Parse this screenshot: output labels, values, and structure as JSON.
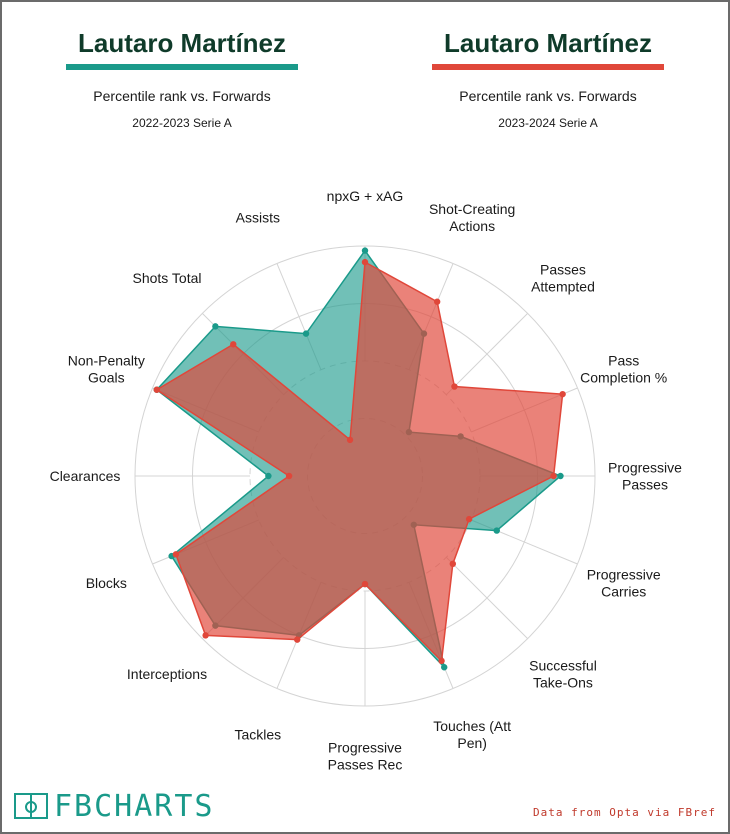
{
  "header": {
    "left": {
      "name": "Lautaro Martínez",
      "subtitle": "Percentile rank vs. Forwards",
      "season": "2022-2023 Serie A",
      "color": "#1a9a8a"
    },
    "right": {
      "name": "Lautaro Martínez",
      "subtitle": "Percentile rank vs. Forwards",
      "season": "2023-2024 Serie A",
      "color": "#e0473a"
    }
  },
  "chart_data": {
    "type": "radar",
    "rmax": 100,
    "rings": [
      25,
      50,
      75,
      100
    ],
    "axes": [
      [
        "npxG + xAG"
      ],
      [
        "Shot-Creating",
        "Actions"
      ],
      [
        "Passes",
        "Attempted"
      ],
      [
        "Pass",
        "Completion %"
      ],
      [
        "Progressive",
        "Passes"
      ],
      [
        "Progressive",
        "Carries"
      ],
      [
        "Successful",
        "Take-Ons"
      ],
      [
        "Touches (Att",
        "Pen)"
      ],
      [
        "Progressive",
        "Passes Rec"
      ],
      [
        "Tackles"
      ],
      [
        "Interceptions"
      ],
      [
        "Blocks"
      ],
      [
        "Clearances"
      ],
      [
        "Non-Penalty",
        "Goals"
      ],
      [
        "Shots Total"
      ],
      [
        "Assists"
      ]
    ],
    "series": [
      {
        "name": "2022-2023 Serie A",
        "color": "#1a9a8a",
        "values": [
          98,
          67,
          27,
          45,
          85,
          62,
          30,
          90,
          47,
          75,
          92,
          91,
          42,
          98,
          92,
          67
        ]
      },
      {
        "name": "2023-2024 Serie A",
        "color": "#e0473a",
        "values": [
          93,
          82,
          55,
          93,
          82,
          49,
          54,
          87,
          47,
          77,
          98,
          89,
          33,
          98,
          81,
          17
        ]
      }
    ]
  },
  "footer": {
    "logo_text": "FBCHARTS",
    "source": "Data from Opta via FBref"
  }
}
